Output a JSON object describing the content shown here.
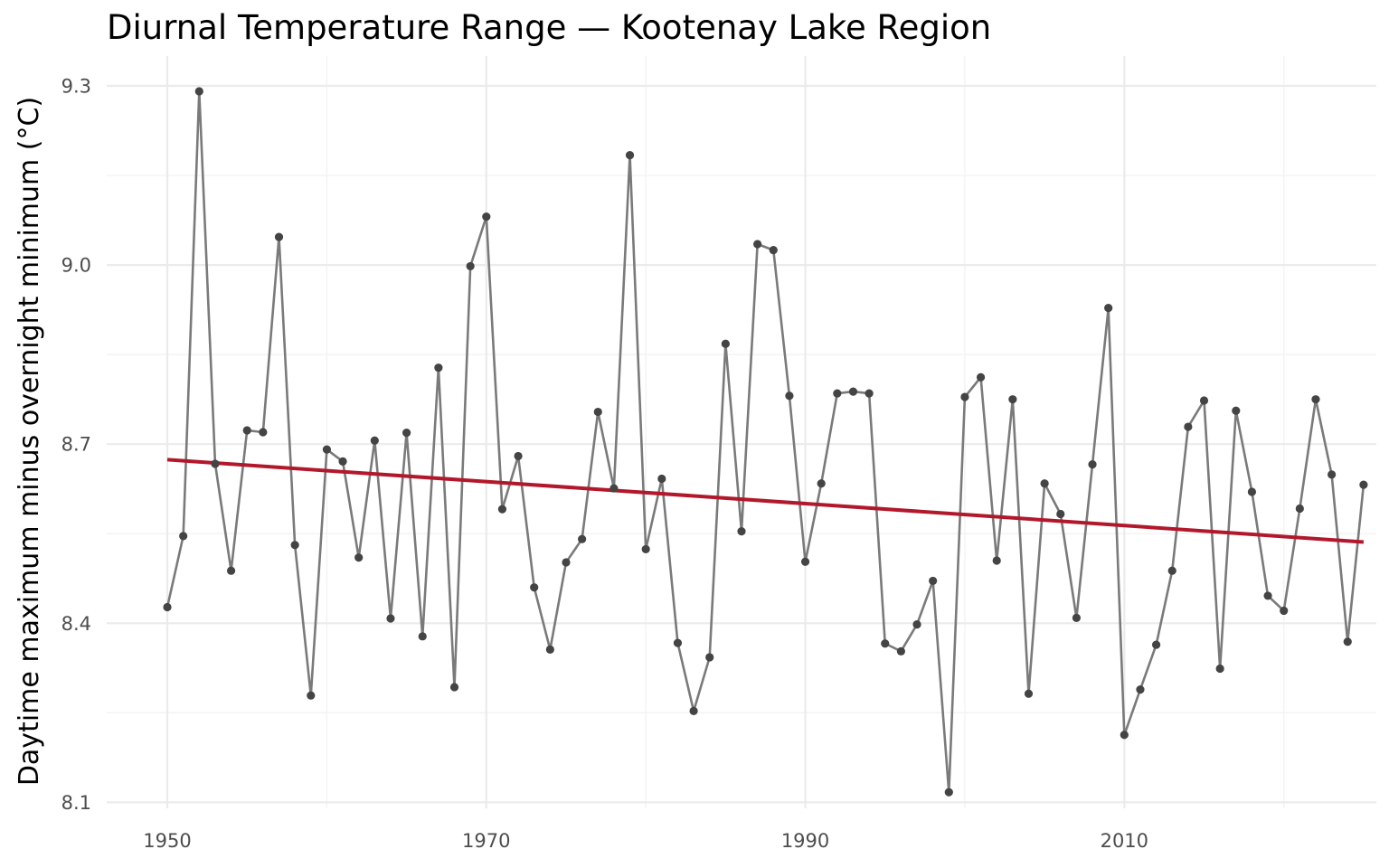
{
  "chart_data": {
    "type": "line",
    "title": "Diurnal Temperature Range — Kootenay Lake Region",
    "xlabel": "",
    "ylabel": "Daytime maximum minus overnight minimum (°C)",
    "xlim": [
      1946.2,
      2025.8
    ],
    "ylim": [
      8.09,
      9.35
    ],
    "x_ticks": [
      1950,
      1970,
      1990,
      2010
    ],
    "y_ticks": [
      8.1,
      8.4,
      8.7,
      9.0,
      9.3
    ],
    "y_tick_labels": [
      "8.1",
      "8.4",
      "8.7",
      "9.0",
      "9.3"
    ],
    "grid": true,
    "colors": {
      "series": "#7a7a7a",
      "points": "#444444",
      "trend": "#b2182b",
      "grid": "#ebebeb"
    },
    "series": [
      {
        "x": [
          1950,
          1951,
          1952,
          1953,
          1954,
          1955,
          1956,
          1957,
          1958,
          1959,
          1960,
          1961,
          1962,
          1963,
          1964,
          1965,
          1966,
          1967,
          1968,
          1969,
          1970,
          1971,
          1972,
          1973,
          1974,
          1975,
          1976,
          1977,
          1978,
          1979,
          1980,
          1981,
          1982,
          1983,
          1984,
          1985,
          1986,
          1987,
          1988,
          1989,
          1990,
          1991,
          1992,
          1993,
          1994,
          1995,
          1996,
          1997,
          1998,
          1999,
          2000,
          2001,
          2002,
          2003,
          2004,
          2005,
          2006,
          2007,
          2008,
          2009,
          2010,
          2011,
          2012,
          2013,
          2014,
          2015,
          2016,
          2017,
          2018,
          2019,
          2020,
          2021,
          2022,
          2023,
          2024,
          2025
        ],
        "values": [
          8.427,
          8.546,
          9.291,
          8.667,
          8.488,
          8.723,
          8.72,
          9.047,
          8.531,
          8.279,
          8.691,
          8.671,
          8.51,
          8.706,
          8.408,
          8.719,
          8.378,
          8.828,
          8.293,
          8.998,
          9.081,
          8.591,
          8.68,
          8.46,
          8.356,
          8.502,
          8.541,
          8.754,
          8.626,
          9.184,
          8.524,
          8.642,
          8.367,
          8.253,
          8.343,
          8.868,
          8.554,
          9.035,
          9.025,
          8.781,
          8.503,
          8.634,
          8.785,
          8.788,
          8.785,
          8.366,
          8.353,
          8.398,
          8.471,
          8.117,
          8.779,
          8.812,
          8.505,
          8.775,
          8.282,
          8.634,
          8.583,
          8.409,
          8.666,
          8.928,
          8.213,
          8.289,
          8.364,
          8.488,
          8.729,
          8.773,
          8.324,
          8.756,
          8.62,
          8.446,
          8.421,
          8.592,
          8.775,
          8.649,
          8.369,
          8.632
        ]
      }
    ],
    "trend": {
      "x": [
        1950,
        2025
      ],
      "values": [
        8.674,
        8.536
      ]
    }
  }
}
